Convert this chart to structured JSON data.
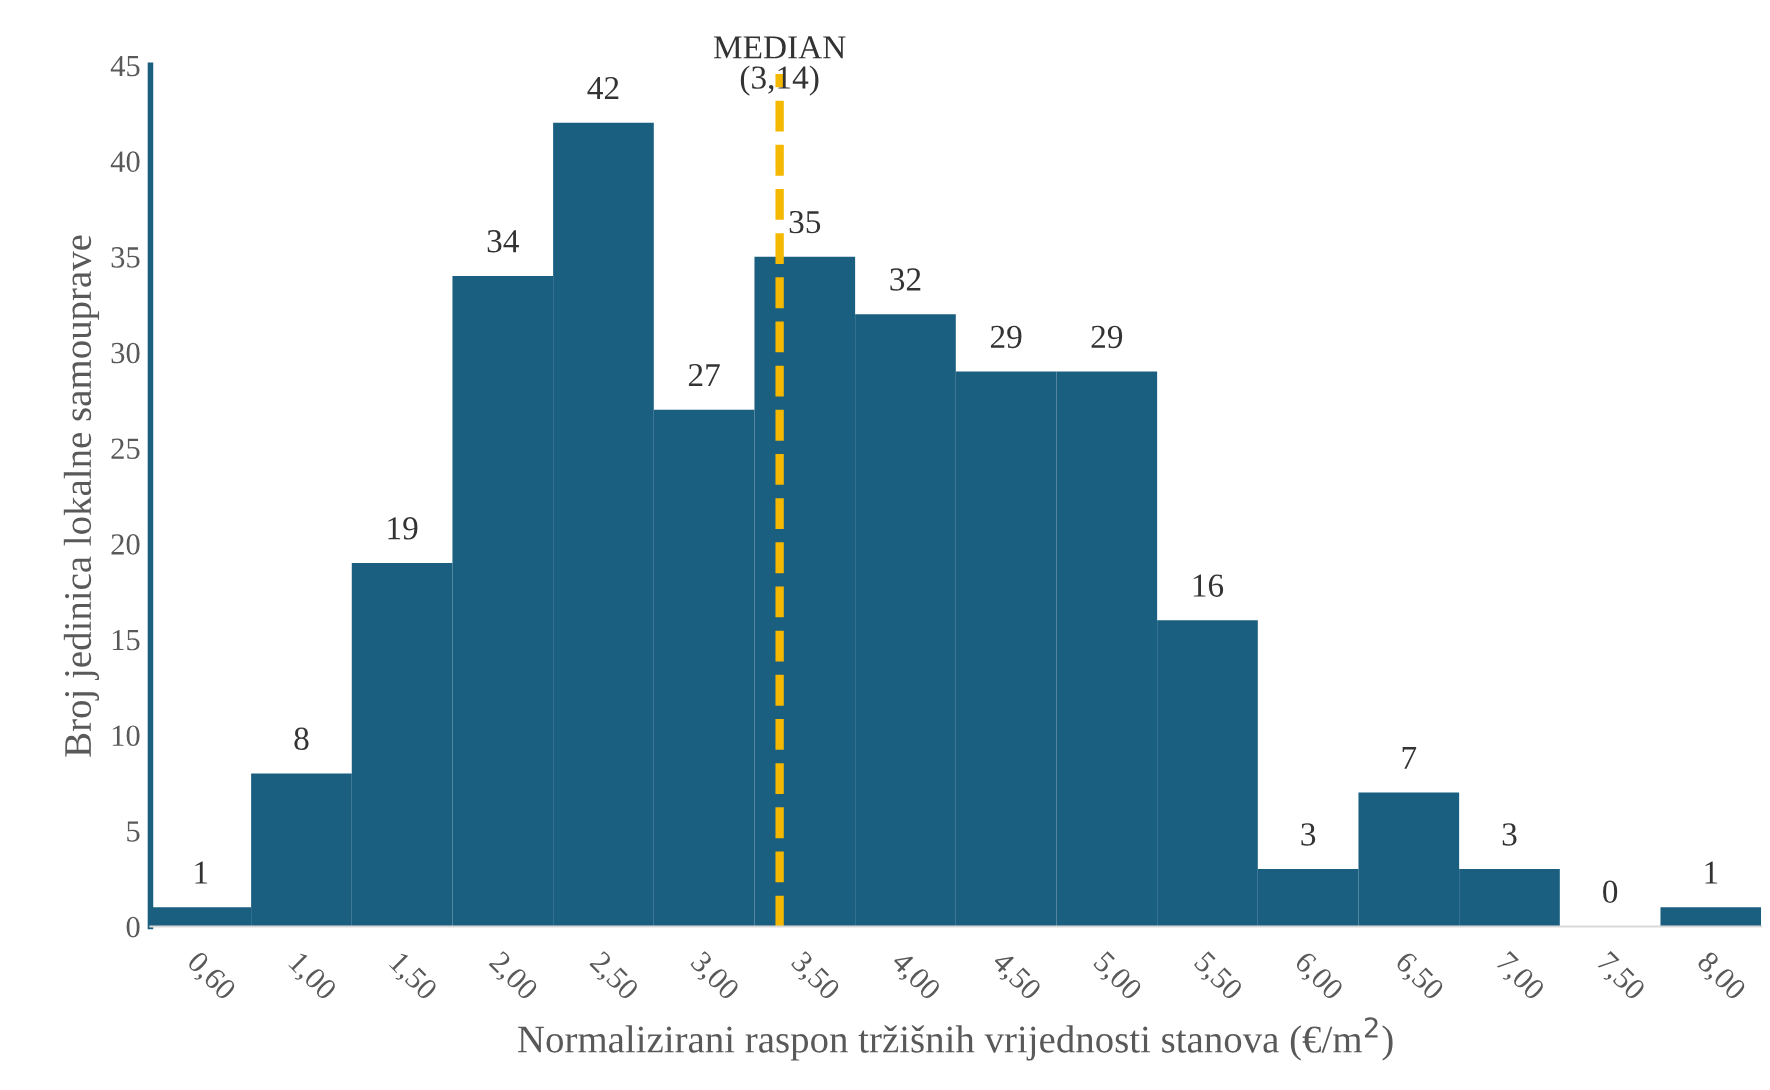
{
  "chart_data": {
    "type": "bar",
    "xlabel": "Normalizirani raspon tržišnih vrijednosti stanova (€/m$^{2}$)",
    "ylabel": "Broj jedinica lokalne samouprave",
    "categories": [
      "0,60",
      "1,00",
      "1,50",
      "2,00",
      "2,50",
      "3,00",
      "3,50",
      "4,00",
      "4,50",
      "5,00",
      "5,50",
      "6,00",
      "6,50",
      "7,00",
      "7,50",
      "8,00"
    ],
    "values": [
      1,
      8,
      19,
      34,
      42,
      27,
      35,
      32,
      29,
      29,
      16,
      3,
      7,
      3,
      0,
      1
    ],
    "color": "#1a5e80",
    "ylim": [
      0,
      45
    ],
    "yticks": [
      0,
      5,
      10,
      15,
      20,
      25,
      30,
      35,
      40,
      45
    ],
    "data_labels": true,
    "grid": false,
    "ref_lines": [
      {
        "axis": "x",
        "value": "3,50",
        "label": "MEDIAN\n(3,14)",
        "color": "#f5b800",
        "line_style": "dashed"
      }
    ]
  }
}
